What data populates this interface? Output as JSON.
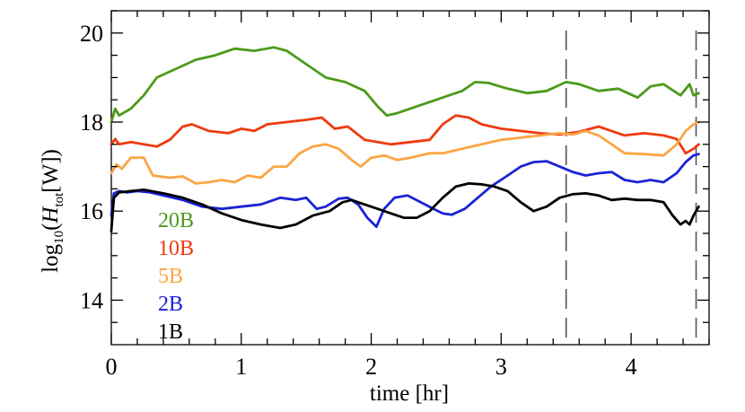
{
  "chart_data": {
    "type": "line",
    "xlabel": "time [hr]",
    "ylabel": "log10(Htot[W])",
    "xlim": [
      0,
      4.6
    ],
    "ylim": [
      13,
      20.5
    ],
    "x_ticks": [
      0,
      1,
      2,
      3,
      4
    ],
    "x_tick_labels": [
      "0",
      "1",
      "2",
      "3",
      "4"
    ],
    "y_ticks": [
      14,
      16,
      18,
      20
    ],
    "y_tick_labels": [
      "14",
      "16",
      "18",
      "20"
    ],
    "vertical_dashed_lines": [
      3.5,
      4.5
    ],
    "legend_placement": "lower-left",
    "series": [
      {
        "name": "20B",
        "color": "#4c9a1a",
        "points": [
          [
            0,
            18.0
          ],
          [
            0.03,
            18.3
          ],
          [
            0.06,
            18.15
          ],
          [
            0.15,
            18.3
          ],
          [
            0.25,
            18.6
          ],
          [
            0.35,
            19.0
          ],
          [
            0.5,
            19.2
          ],
          [
            0.65,
            19.4
          ],
          [
            0.8,
            19.5
          ],
          [
            0.95,
            19.65
          ],
          [
            1.1,
            19.6
          ],
          [
            1.25,
            19.68
          ],
          [
            1.35,
            19.6
          ],
          [
            1.5,
            19.3
          ],
          [
            1.65,
            19.0
          ],
          [
            1.8,
            18.9
          ],
          [
            1.95,
            18.7
          ],
          [
            2.05,
            18.35
          ],
          [
            2.12,
            18.15
          ],
          [
            2.2,
            18.2
          ],
          [
            2.35,
            18.35
          ],
          [
            2.5,
            18.5
          ],
          [
            2.6,
            18.6
          ],
          [
            2.7,
            18.7
          ],
          [
            2.8,
            18.9
          ],
          [
            2.9,
            18.88
          ],
          [
            3.05,
            18.75
          ],
          [
            3.2,
            18.65
          ],
          [
            3.35,
            18.7
          ],
          [
            3.5,
            18.9
          ],
          [
            3.6,
            18.85
          ],
          [
            3.75,
            18.7
          ],
          [
            3.9,
            18.75
          ],
          [
            4.05,
            18.55
          ],
          [
            4.15,
            18.8
          ],
          [
            4.25,
            18.85
          ],
          [
            4.38,
            18.6
          ],
          [
            4.45,
            18.85
          ],
          [
            4.48,
            18.6
          ],
          [
            4.52,
            18.65
          ]
        ]
      },
      {
        "name": "10B",
        "color": "#ee3a0e",
        "points": [
          [
            0,
            17.5
          ],
          [
            0.03,
            17.62
          ],
          [
            0.06,
            17.5
          ],
          [
            0.15,
            17.55
          ],
          [
            0.25,
            17.5
          ],
          [
            0.35,
            17.45
          ],
          [
            0.45,
            17.6
          ],
          [
            0.55,
            17.9
          ],
          [
            0.62,
            17.95
          ],
          [
            0.75,
            17.8
          ],
          [
            0.9,
            17.75
          ],
          [
            1.0,
            17.85
          ],
          [
            1.1,
            17.8
          ],
          [
            1.2,
            17.95
          ],
          [
            1.35,
            18.0
          ],
          [
            1.5,
            18.05
          ],
          [
            1.62,
            18.1
          ],
          [
            1.72,
            17.85
          ],
          [
            1.82,
            17.9
          ],
          [
            1.95,
            17.6
          ],
          [
            2.05,
            17.55
          ],
          [
            2.15,
            17.5
          ],
          [
            2.3,
            17.55
          ],
          [
            2.45,
            17.6
          ],
          [
            2.55,
            17.95
          ],
          [
            2.65,
            18.15
          ],
          [
            2.75,
            18.1
          ],
          [
            2.85,
            17.95
          ],
          [
            3.0,
            17.85
          ],
          [
            3.15,
            17.8
          ],
          [
            3.3,
            17.75
          ],
          [
            3.45,
            17.72
          ],
          [
            3.6,
            17.78
          ],
          [
            3.75,
            17.9
          ],
          [
            3.85,
            17.8
          ],
          [
            3.95,
            17.7
          ],
          [
            4.1,
            17.75
          ],
          [
            4.25,
            17.7
          ],
          [
            4.35,
            17.62
          ],
          [
            4.42,
            17.3
          ],
          [
            4.48,
            17.4
          ],
          [
            4.52,
            17.5
          ]
        ]
      },
      {
        "name": "5B",
        "color": "#fba544",
        "points": [
          [
            0,
            16.85
          ],
          [
            0.04,
            17.05
          ],
          [
            0.08,
            16.95
          ],
          [
            0.15,
            17.2
          ],
          [
            0.25,
            17.2
          ],
          [
            0.32,
            16.8
          ],
          [
            0.45,
            16.75
          ],
          [
            0.55,
            16.78
          ],
          [
            0.65,
            16.62
          ],
          [
            0.75,
            16.65
          ],
          [
            0.85,
            16.7
          ],
          [
            0.95,
            16.65
          ],
          [
            1.05,
            16.8
          ],
          [
            1.15,
            16.75
          ],
          [
            1.25,
            17.0
          ],
          [
            1.35,
            17.0
          ],
          [
            1.45,
            17.3
          ],
          [
            1.55,
            17.45
          ],
          [
            1.65,
            17.5
          ],
          [
            1.75,
            17.4
          ],
          [
            1.85,
            17.15
          ],
          [
            1.92,
            17.0
          ],
          [
            2.0,
            17.2
          ],
          [
            2.1,
            17.25
          ],
          [
            2.2,
            17.15
          ],
          [
            2.3,
            17.2
          ],
          [
            2.45,
            17.3
          ],
          [
            2.55,
            17.3
          ],
          [
            2.7,
            17.4
          ],
          [
            2.85,
            17.5
          ],
          [
            3.0,
            17.6
          ],
          [
            3.15,
            17.65
          ],
          [
            3.3,
            17.7
          ],
          [
            3.45,
            17.75
          ],
          [
            3.55,
            17.72
          ],
          [
            3.65,
            17.8
          ],
          [
            3.75,
            17.7
          ],
          [
            3.85,
            17.5
          ],
          [
            3.95,
            17.3
          ],
          [
            4.1,
            17.28
          ],
          [
            4.25,
            17.25
          ],
          [
            4.35,
            17.5
          ],
          [
            4.42,
            17.8
          ],
          [
            4.48,
            17.95
          ],
          [
            4.52,
            18.0
          ]
        ]
      },
      {
        "name": "2B",
        "color": "#1a23d6",
        "points": [
          [
            0,
            15.9
          ],
          [
            0.02,
            16.4
          ],
          [
            0.06,
            16.45
          ],
          [
            0.12,
            16.42
          ],
          [
            0.2,
            16.45
          ],
          [
            0.3,
            16.42
          ],
          [
            0.4,
            16.35
          ],
          [
            0.55,
            16.25
          ],
          [
            0.7,
            16.1
          ],
          [
            0.85,
            16.05
          ],
          [
            1.0,
            16.1
          ],
          [
            1.15,
            16.15
          ],
          [
            1.3,
            16.3
          ],
          [
            1.42,
            16.25
          ],
          [
            1.5,
            16.3
          ],
          [
            1.58,
            16.05
          ],
          [
            1.65,
            16.1
          ],
          [
            1.75,
            16.28
          ],
          [
            1.82,
            16.3
          ],
          [
            1.9,
            16.15
          ],
          [
            1.97,
            15.85
          ],
          [
            2.04,
            15.65
          ],
          [
            2.1,
            16.05
          ],
          [
            2.18,
            16.3
          ],
          [
            2.28,
            16.35
          ],
          [
            2.38,
            16.2
          ],
          [
            2.48,
            16.05
          ],
          [
            2.55,
            15.95
          ],
          [
            2.62,
            15.92
          ],
          [
            2.72,
            16.05
          ],
          [
            2.82,
            16.3
          ],
          [
            2.92,
            16.55
          ],
          [
            3.05,
            16.8
          ],
          [
            3.15,
            17.0
          ],
          [
            3.25,
            17.1
          ],
          [
            3.35,
            17.12
          ],
          [
            3.45,
            17.0
          ],
          [
            3.55,
            16.88
          ],
          [
            3.65,
            16.8
          ],
          [
            3.75,
            16.85
          ],
          [
            3.85,
            16.88
          ],
          [
            3.95,
            16.7
          ],
          [
            4.05,
            16.65
          ],
          [
            4.15,
            16.7
          ],
          [
            4.25,
            16.65
          ],
          [
            4.35,
            16.85
          ],
          [
            4.42,
            17.1
          ],
          [
            4.48,
            17.25
          ],
          [
            4.52,
            17.28
          ]
        ]
      },
      {
        "name": "1B",
        "color": "#000000",
        "points": [
          [
            0,
            15.55
          ],
          [
            0.02,
            16.3
          ],
          [
            0.06,
            16.42
          ],
          [
            0.15,
            16.45
          ],
          [
            0.25,
            16.48
          ],
          [
            0.4,
            16.4
          ],
          [
            0.55,
            16.3
          ],
          [
            0.7,
            16.15
          ],
          [
            0.85,
            15.95
          ],
          [
            1.0,
            15.8
          ],
          [
            1.15,
            15.7
          ],
          [
            1.3,
            15.62
          ],
          [
            1.42,
            15.7
          ],
          [
            1.55,
            15.9
          ],
          [
            1.68,
            16.0
          ],
          [
            1.78,
            16.2
          ],
          [
            1.85,
            16.25
          ],
          [
            1.95,
            16.15
          ],
          [
            2.05,
            16.05
          ],
          [
            2.15,
            15.95
          ],
          [
            2.25,
            15.85
          ],
          [
            2.35,
            15.85
          ],
          [
            2.45,
            16.0
          ],
          [
            2.55,
            16.3
          ],
          [
            2.65,
            16.55
          ],
          [
            2.75,
            16.62
          ],
          [
            2.85,
            16.6
          ],
          [
            2.95,
            16.55
          ],
          [
            3.05,
            16.45
          ],
          [
            3.15,
            16.2
          ],
          [
            3.25,
            16.0
          ],
          [
            3.35,
            16.1
          ],
          [
            3.45,
            16.3
          ],
          [
            3.55,
            16.38
          ],
          [
            3.65,
            16.4
          ],
          [
            3.75,
            16.35
          ],
          [
            3.85,
            16.25
          ],
          [
            3.95,
            16.28
          ],
          [
            4.05,
            16.25
          ],
          [
            4.15,
            16.25
          ],
          [
            4.25,
            16.2
          ],
          [
            4.32,
            15.9
          ],
          [
            4.38,
            15.7
          ],
          [
            4.42,
            15.78
          ],
          [
            4.45,
            15.7
          ],
          [
            4.48,
            15.9
          ],
          [
            4.52,
            16.1
          ]
        ]
      }
    ]
  }
}
